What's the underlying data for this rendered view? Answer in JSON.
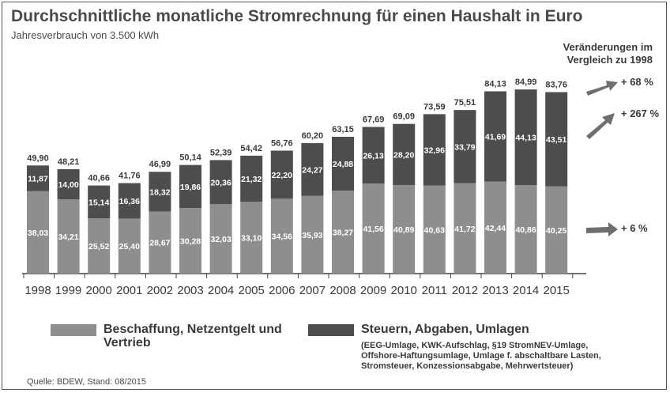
{
  "colors": {
    "light": "#8e8e8e",
    "dark": "#4d4d4d",
    "text_inside": "#ffffff",
    "text_dark": "#3a3a3a",
    "arrow": "#6e6e6e"
  },
  "chart_data": {
    "type": "bar",
    "stacked": true,
    "title": "Durchschnittliche monatliche Stromrechnung für einen Haushalt in Euro",
    "subtitle": "Jahresverbrauch von 3.500 kWh",
    "categories": [
      "1998",
      "1999",
      "2000",
      "2001",
      "2002",
      "2003",
      "2004",
      "2005",
      "2006",
      "2007",
      "2008",
      "2009",
      "2010",
      "2011",
      "2012",
      "2013",
      "2014",
      "2015"
    ],
    "series": [
      {
        "name": "Beschaffung, Netzentgelt und Vertrieb",
        "color": "#8e8e8e",
        "values": [
          38.03,
          34.21,
          25.52,
          25.4,
          28.67,
          30.28,
          32.03,
          33.1,
          34.56,
          35.93,
          38.27,
          41.56,
          40.89,
          40.63,
          41.72,
          42.44,
          40.86,
          40.25
        ],
        "labels": [
          "38,03",
          "34,21",
          "25,52",
          "25,40",
          "28,67",
          "30,28",
          "32,03",
          "33,10",
          "34,56",
          "35,93",
          "38,27",
          "41,56",
          "40,89",
          "40,63",
          "41,72",
          "42,44",
          "40,86",
          "40,25"
        ]
      },
      {
        "name": "Steuern, Abgaben, Umlagen",
        "color": "#4d4d4d",
        "values": [
          11.87,
          14.0,
          15.14,
          16.36,
          18.32,
          19.86,
          20.36,
          21.32,
          22.2,
          24.27,
          24.88,
          26.13,
          28.2,
          32.96,
          33.79,
          41.69,
          44.13,
          43.51
        ],
        "labels": [
          "11,87",
          "14,00",
          "15,14",
          "16,36",
          "18,32",
          "19,86",
          "20,36",
          "21,32",
          "22,20",
          "24,27",
          "24,88",
          "26,13",
          "28,20",
          "32,96",
          "33,79",
          "41,69",
          "44,13",
          "43,51"
        ]
      }
    ],
    "totals": [
      49.9,
      48.21,
      40.66,
      41.76,
      46.99,
      50.14,
      52.39,
      54.42,
      56.76,
      60.2,
      63.15,
      67.69,
      69.09,
      73.59,
      75.51,
      84.13,
      84.99,
      83.76
    ],
    "total_labels": [
      "49,90",
      "48,21",
      "40,66",
      "41,76",
      "46,99",
      "50,14",
      "52,39",
      "54,42",
      "56,76",
      "60,20",
      "63,15",
      "67,69",
      "69,09",
      "73,59",
      "75,51",
      "84,13",
      "84,99",
      "83,76"
    ],
    "ylim": [
      0,
      90
    ],
    "grid": false,
    "changes_title": "Veränderungen im Vergleich zu 1998",
    "changes": [
      {
        "label": "+ 68 %",
        "refers_to": "total"
      },
      {
        "label": "+ 267 %",
        "refers_to": "Steuern, Abgaben, Umlagen"
      },
      {
        "label": "+ 6 %",
        "refers_to": "Beschaffung, Netzentgelt und Vertrieb"
      }
    ]
  },
  "legend": {
    "item1": "Beschaffung, Netzentgelt und Vertrieb",
    "item2": "Steuern, Abgaben, Umlagen",
    "item2_note": "(EEG-Umlage, KWK-Aufschlag, §19 StromNEV-Umlage, Offshore-Haftungsumlage, Umlage f. abschaltbare Lasten, Stromsteuer, Konzessionsabgabe, Mehrwertsteuer)"
  },
  "source": "Quelle: BDEW, Stand: 08/2015"
}
